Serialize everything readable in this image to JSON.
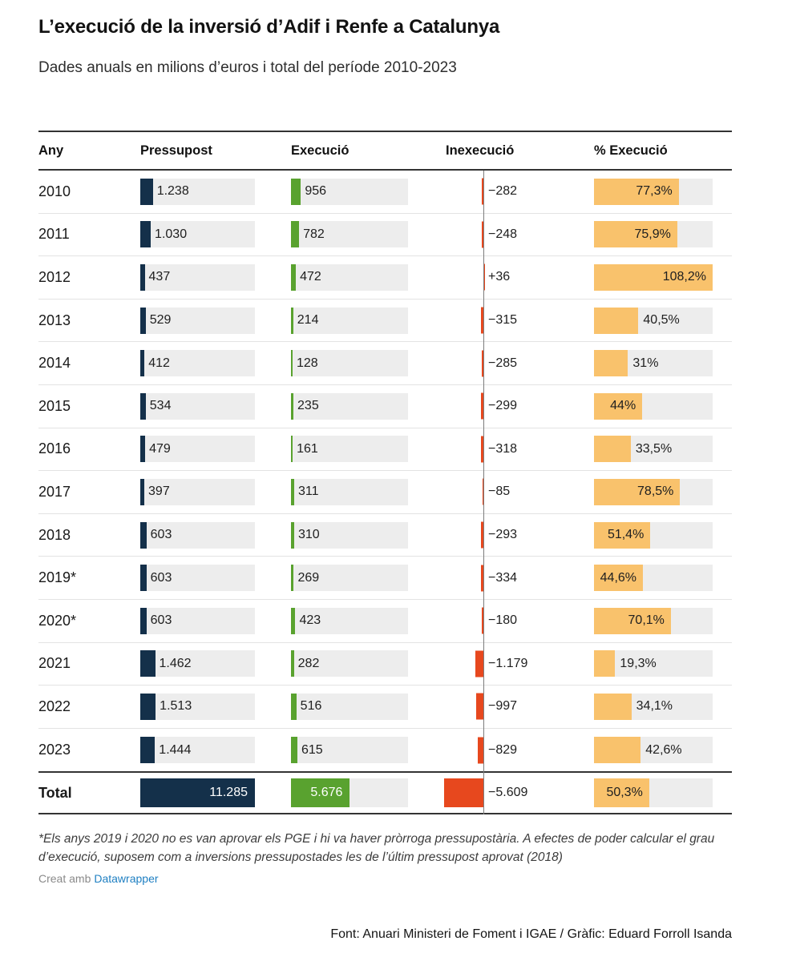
{
  "header": {
    "title": "L’execució de la inversió d’Adif i Renfe a Catalunya",
    "subtitle": "Dades anuals en milions d’euros i total del període 2010-2023"
  },
  "colors": {
    "navy": "#14304a",
    "green": "#59a22f",
    "red": "#e7481e",
    "orange": "#f9c26c",
    "track": "#ededed",
    "link": "#1e7fc2"
  },
  "footer": {
    "note": "*Els anys 2019 i 2020 no es van aprovar els PGE i hi va haver pròrroga pressupostària. A efectes de poder calcular el grau d’execució, suposem com a inversions pressupostades les de l’últim pressupost aprovat (2018)",
    "credit_prefix": "Creat amb",
    "credit_link": "Datawrapper",
    "attribution": "Font: Anuari Ministeri de Foment i IGAE / Gràfic: Eduard Forroll Isanda"
  },
  "chart_data": {
    "type": "table",
    "title": "L’execució de la inversió d’Adif i Renfe a Catalunya",
    "subtitle": "Dades anuals en milions d’euros i total del període 2010-2023",
    "units": "milions d'euros",
    "columns": [
      "Any",
      "Pressupost",
      "Execució",
      "Inexecució",
      "% Execució"
    ],
    "scale": {
      "budget_max": 11285,
      "inexecucio_min": -5609,
      "pct_max": 108.2
    },
    "rows": [
      {
        "year": "2010",
        "pressupost": 1238,
        "pressupost_label": "1.238",
        "execucio": 956,
        "execucio_label": "956",
        "inexecucio": -282,
        "inexecucio_label": "−282",
        "pct": 77.3,
        "pct_label": "77,3%",
        "pct_label_inside": true
      },
      {
        "year": "2011",
        "pressupost": 1030,
        "pressupost_label": "1.030",
        "execucio": 782,
        "execucio_label": "782",
        "inexecucio": -248,
        "inexecucio_label": "−248",
        "pct": 75.9,
        "pct_label": "75,9%",
        "pct_label_inside": true
      },
      {
        "year": "2012",
        "pressupost": 437,
        "pressupost_label": "437",
        "execucio": 472,
        "execucio_label": "472",
        "inexecucio": 36,
        "inexecucio_label": "+36",
        "pct": 108.2,
        "pct_label": "108,2%",
        "pct_label_inside": true
      },
      {
        "year": "2013",
        "pressupost": 529,
        "pressupost_label": "529",
        "execucio": 214,
        "execucio_label": "214",
        "inexecucio": -315,
        "inexecucio_label": "−315",
        "pct": 40.5,
        "pct_label": "40,5%",
        "pct_label_inside": false
      },
      {
        "year": "2014",
        "pressupost": 412,
        "pressupost_label": "412",
        "execucio": 128,
        "execucio_label": "128",
        "inexecucio": -285,
        "inexecucio_label": "−285",
        "pct": 31,
        "pct_label": "31%",
        "pct_label_inside": false
      },
      {
        "year": "2015",
        "pressupost": 534,
        "pressupost_label": "534",
        "execucio": 235,
        "execucio_label": "235",
        "inexecucio": -299,
        "inexecucio_label": "−299",
        "pct": 44,
        "pct_label": "44%",
        "pct_label_inside": true
      },
      {
        "year": "2016",
        "pressupost": 479,
        "pressupost_label": "479",
        "execucio": 161,
        "execucio_label": "161",
        "inexecucio": -318,
        "inexecucio_label": "−318",
        "pct": 33.5,
        "pct_label": "33,5%",
        "pct_label_inside": false
      },
      {
        "year": "2017",
        "pressupost": 397,
        "pressupost_label": "397",
        "execucio": 311,
        "execucio_label": "311",
        "inexecucio": -85,
        "inexecucio_label": "−85",
        "pct": 78.5,
        "pct_label": "78,5%",
        "pct_label_inside": true
      },
      {
        "year": "2018",
        "pressupost": 603,
        "pressupost_label": "603",
        "execucio": 310,
        "execucio_label": "310",
        "inexecucio": -293,
        "inexecucio_label": "−293",
        "pct": 51.4,
        "pct_label": "51,4%",
        "pct_label_inside": true
      },
      {
        "year": "2019*",
        "pressupost": 603,
        "pressupost_label": "603",
        "execucio": 269,
        "execucio_label": "269",
        "inexecucio": -334,
        "inexecucio_label": "−334",
        "pct": 44.6,
        "pct_label": "44,6%",
        "pct_label_inside": true
      },
      {
        "year": "2020*",
        "pressupost": 603,
        "pressupost_label": "603",
        "execucio": 423,
        "execucio_label": "423",
        "inexecucio": -180,
        "inexecucio_label": "−180",
        "pct": 70.1,
        "pct_label": "70,1%",
        "pct_label_inside": true
      },
      {
        "year": "2021",
        "pressupost": 1462,
        "pressupost_label": "1.462",
        "execucio": 282,
        "execucio_label": "282",
        "inexecucio": -1179,
        "inexecucio_label": "−1.179",
        "pct": 19.3,
        "pct_label": "19,3%",
        "pct_label_inside": false
      },
      {
        "year": "2022",
        "pressupost": 1513,
        "pressupost_label": "1.513",
        "execucio": 516,
        "execucio_label": "516",
        "inexecucio": -997,
        "inexecucio_label": "−997",
        "pct": 34.1,
        "pct_label": "34,1%",
        "pct_label_inside": false
      },
      {
        "year": "2023",
        "pressupost": 1444,
        "pressupost_label": "1.444",
        "execucio": 615,
        "execucio_label": "615",
        "inexecucio": -829,
        "inexecucio_label": "−829",
        "pct": 42.6,
        "pct_label": "42,6%",
        "pct_label_inside": false
      }
    ],
    "total": {
      "year": "Total",
      "pressupost": 11285,
      "pressupost_label": "11.285",
      "execucio": 5676,
      "execucio_label": "5.676",
      "inexecucio": -5609,
      "inexecucio_label": "−5.609",
      "pct": 50.3,
      "pct_label": "50,3%",
      "pct_label_inside": true
    }
  }
}
